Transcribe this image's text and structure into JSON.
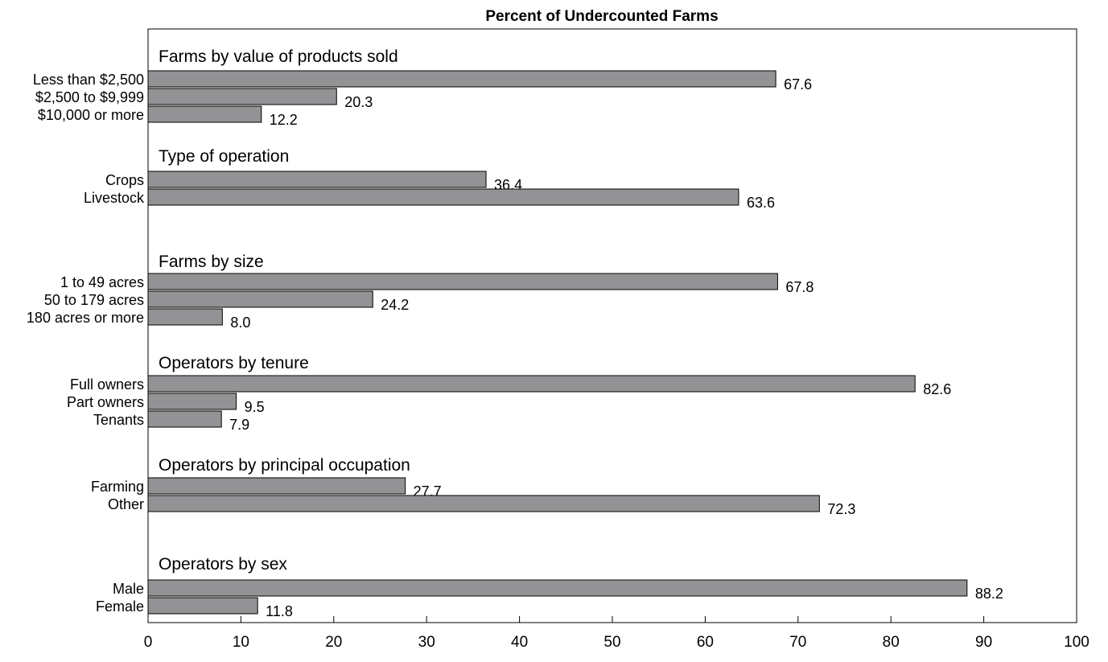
{
  "chart_data": {
    "type": "bar",
    "orientation": "horizontal",
    "title": "Percent of Undercounted Farms",
    "xlim": [
      0,
      100
    ],
    "xticks": [
      0,
      10,
      20,
      30,
      40,
      50,
      60,
      70,
      80,
      90,
      100
    ],
    "grid": false,
    "bar_color": "#939396",
    "groups": [
      {
        "name": "Farms by value of products sold",
        "categories": [
          "Less than $2,500",
          "$2,500 to $9,999",
          "$10,000 or more"
        ],
        "values": [
          67.6,
          20.3,
          12.2
        ]
      },
      {
        "name": "Type of operation",
        "categories": [
          "Crops",
          "Livestock"
        ],
        "values": [
          36.4,
          63.6
        ]
      },
      {
        "name": "Farms by size",
        "categories": [
          "1 to 49 acres",
          "50 to 179 acres",
          "180 acres or more"
        ],
        "values": [
          67.8,
          24.2,
          8.0
        ]
      },
      {
        "name": "Operators by tenure",
        "categories": [
          "Full owners",
          "Part owners",
          "Tenants"
        ],
        "values": [
          82.6,
          9.5,
          7.9
        ]
      },
      {
        "name": "Operators by principal occupation",
        "categories": [
          "Farming",
          "Other"
        ],
        "values": [
          27.7,
          72.3
        ]
      },
      {
        "name": "Operators by sex",
        "categories": [
          "Male",
          "Female"
        ],
        "values": [
          88.2,
          11.8
        ]
      }
    ]
  }
}
